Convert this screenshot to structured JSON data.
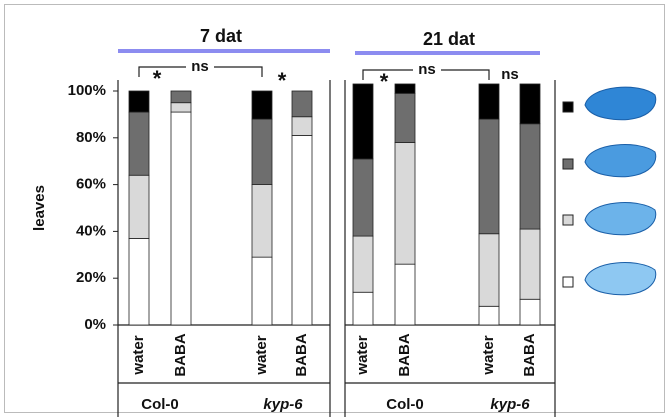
{
  "chart_data": [
    {
      "type": "bar",
      "stacked": true,
      "title": "7 dat",
      "title_color": "#8c8cf0",
      "ylabel": "leaves",
      "ylim": [
        0,
        100
      ],
      "yticks": [
        {
          "value": 0,
          "label": "0%"
        },
        {
          "value": 20,
          "label": "20%"
        },
        {
          "value": 40,
          "label": "40%"
        },
        {
          "value": 60,
          "label": "60%"
        },
        {
          "value": 80,
          "label": "80%"
        },
        {
          "value": 100,
          "label": "100%"
        }
      ],
      "categories": [
        "water",
        "BABA",
        "water",
        "BABA"
      ],
      "groups": [
        "Col-0",
        "kyp-6"
      ],
      "series": [
        {
          "color": "#ffffff",
          "values": [
            37,
            91,
            29,
            81
          ]
        },
        {
          "color": "#d9d9d9",
          "values": [
            27,
            4,
            31,
            8
          ]
        },
        {
          "color": "#6e6e6e",
          "values": [
            27,
            5,
            28,
            11
          ]
        },
        {
          "color": "#000000",
          "values": [
            9,
            0,
            12,
            0
          ]
        }
      ],
      "annotations": [
        {
          "text": "ns",
          "color": "#111111"
        },
        {
          "text": "*",
          "color": "#c00000"
        },
        {
          "text": "*",
          "color": "#c00000"
        }
      ]
    },
    {
      "type": "bar",
      "stacked": true,
      "title": "21 dat",
      "title_color": "#8c8cf0",
      "ylim": [
        0,
        100
      ],
      "categories": [
        "water",
        "BABA",
        "water",
        "BABA"
      ],
      "groups": [
        "Col-0",
        "kyp-6"
      ],
      "series": [
        {
          "color": "#ffffff",
          "values": [
            14,
            26,
            8,
            11
          ]
        },
        {
          "color": "#d9d9d9",
          "values": [
            24,
            52,
            31,
            30
          ]
        },
        {
          "color": "#6e6e6e",
          "values": [
            33,
            21,
            49,
            45
          ]
        },
        {
          "color": "#000000",
          "values": [
            32,
            4,
            15,
            17
          ]
        }
      ],
      "annotations": [
        {
          "text": "ns",
          "color": "#111111"
        },
        {
          "text": "*",
          "color": "#c00000"
        },
        {
          "text": "ns",
          "color": "#c00000"
        }
      ]
    }
  ]
}
